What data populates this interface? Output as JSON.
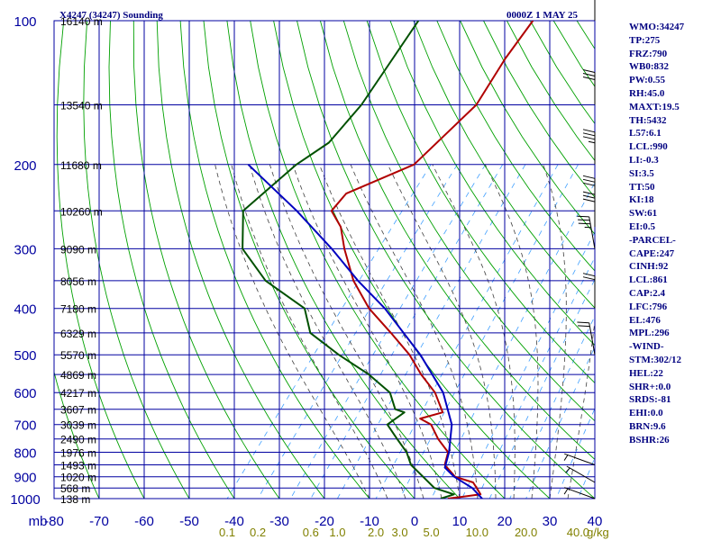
{
  "header": {
    "station": "X4247 (34247) Sounding",
    "time": "0000Z  1 MAY 25"
  },
  "indices": [
    "WMO:34247",
    "TP:275",
    "FRZ:790",
    "WB0:832",
    "PW:0.55",
    "RH:45.0",
    "MAXT:19.5",
    "TH:5432",
    "L57:6.1",
    "LCL:990",
    "LI:-0.3",
    "SI:3.5",
    "TT:50",
    "KI:18",
    "SW:61",
    "EI:0.5",
    "-PARCEL-",
    "CAPE:247",
    "CINH:92",
    "LCL:861",
    "CAP:2.4",
    "LFC:796",
    "EL:476",
    "MPL:296",
    "-WIND-",
    "STM:302/12",
    "HEL:22",
    "SHR+:0.0",
    "SRDS:-81",
    "EHI:0.0",
    "BRN:9.6",
    "BSHR:26"
  ],
  "colors": {
    "grid": "#0000a0",
    "dry_adiabat": "#00a000",
    "moist_adiabat": "#404040",
    "mixing_ratio": "#40a0ff",
    "temperature": "#b00000",
    "dewpoint": "#005000",
    "parcel": "#0000c0",
    "mixing_ratio_label": "#808000"
  },
  "chart_data": {
    "type": "line",
    "title": "X4247 (34247) Sounding",
    "subtitle": "0000Z  1 MAY 25",
    "pressure_axis_unit": "mb",
    "mixing_ratio_unit": "g/kg",
    "pressure_range": [
      100,
      1000
    ],
    "temperature_range": [
      -80,
      40
    ],
    "pressure_ticks": [
      {
        "value": 100,
        "label": "100"
      },
      {
        "value": 200,
        "label": "200"
      },
      {
        "value": 300,
        "label": "300"
      },
      {
        "value": 400,
        "label": "400"
      },
      {
        "value": 500,
        "label": "500"
      },
      {
        "value": 600,
        "label": "600"
      },
      {
        "value": 700,
        "label": "700"
      },
      {
        "value": 800,
        "label": "800"
      },
      {
        "value": 900,
        "label": "900"
      },
      {
        "value": 1000,
        "label": "1000"
      }
    ],
    "temperature_ticks": [
      {
        "value": -80,
        "label": "-80"
      },
      {
        "value": -70,
        "label": "-70"
      },
      {
        "value": -60,
        "label": "-60"
      },
      {
        "value": -50,
        "label": "-50"
      },
      {
        "value": -40,
        "label": "-40"
      },
      {
        "value": -30,
        "label": "-30"
      },
      {
        "value": -20,
        "label": "-20"
      },
      {
        "value": -10,
        "label": "-10"
      },
      {
        "value": 0,
        "label": "0"
      },
      {
        "value": 10,
        "label": "10"
      },
      {
        "value": 20,
        "label": "20"
      },
      {
        "value": 30,
        "label": "30"
      },
      {
        "value": 40,
        "label": "40"
      }
    ],
    "mixing_ratio_labels": [
      {
        "ratio": 0.1,
        "label": "0.1"
      },
      {
        "ratio": 0.2,
        "label": "0.2"
      },
      {
        "ratio": 0.6,
        "label": "0.6"
      },
      {
        "ratio": 1.0,
        "label": "1.0"
      },
      {
        "ratio": 2.0,
        "label": "2.0"
      },
      {
        "ratio": 3.0,
        "label": "3.0"
      },
      {
        "ratio": 5.0,
        "label": "5.0"
      },
      {
        "ratio": 10.0,
        "label": "10.0"
      },
      {
        "ratio": 20.0,
        "label": "20.0"
      },
      {
        "ratio": 40.0,
        "label": "40.0"
      }
    ],
    "mixing_ratio_lines": [
      0.1,
      0.2,
      0.4,
      0.6,
      1,
      2,
      3,
      5,
      8,
      10,
      12,
      16,
      20,
      30,
      40
    ],
    "height_levels": [
      {
        "pressure": 100,
        "label": "16140 m"
      },
      {
        "pressure": 150,
        "label": "13540 m"
      },
      {
        "pressure": 200,
        "label": "11680 m"
      },
      {
        "pressure": 250,
        "label": "10260 m"
      },
      {
        "pressure": 300,
        "label": "9090 m"
      },
      {
        "pressure": 350,
        "label": "8056 m"
      },
      {
        "pressure": 400,
        "label": "7180 m"
      },
      {
        "pressure": 450,
        "label": "6329 m"
      },
      {
        "pressure": 500,
        "label": "5570 m"
      },
      {
        "pressure": 550,
        "label": "4869 m"
      },
      {
        "pressure": 600,
        "label": "4217 m"
      },
      {
        "pressure": 650,
        "label": "3607 m"
      },
      {
        "pressure": 700,
        "label": "3039 m"
      },
      {
        "pressure": 750,
        "label": "2490 m"
      },
      {
        "pressure": 800,
        "label": "1976 m"
      },
      {
        "pressure": 850,
        "label": "1493 m"
      },
      {
        "pressure": 900,
        "label": "1020 m"
      },
      {
        "pressure": 950,
        "label": "568 m"
      },
      {
        "pressure": 1000,
        "label": "138 m"
      }
    ],
    "series": [
      {
        "key": "temperature",
        "points": [
          [
            1000,
            7.4
          ],
          [
            980,
            13.9
          ],
          [
            950,
            11.9
          ],
          [
            925,
            10.1
          ],
          [
            900,
            5.1
          ],
          [
            850,
            0.7
          ],
          [
            800,
            -0.8
          ],
          [
            750,
            -5.4
          ],
          [
            700,
            -9.5
          ],
          [
            680,
            -13.0
          ],
          [
            660,
            -9.1
          ],
          [
            600,
            -14.3
          ],
          [
            550,
            -20.6
          ],
          [
            500,
            -26.7
          ],
          [
            450,
            -34.7
          ],
          [
            400,
            -43.9
          ],
          [
            350,
            -52.3
          ],
          [
            300,
            -60.0
          ],
          [
            270,
            -64.7
          ],
          [
            250,
            -69.6
          ],
          [
            230,
            -69.4
          ],
          [
            200,
            -59.5
          ],
          [
            150,
            -56.3
          ],
          [
            120,
            -58.1
          ],
          [
            100,
            -58.7
          ]
        ]
      },
      {
        "key": "dewpoint",
        "points": [
          [
            1000,
            5.8
          ],
          [
            980,
            8.0
          ],
          [
            950,
            2.5
          ],
          [
            900,
            -2.0
          ],
          [
            850,
            -6.8
          ],
          [
            800,
            -10.0
          ],
          [
            750,
            -14.5
          ],
          [
            700,
            -19.2
          ],
          [
            660,
            -17.6
          ],
          [
            650,
            -20.2
          ],
          [
            600,
            -24.3
          ],
          [
            550,
            -32.2
          ],
          [
            500,
            -42.4
          ],
          [
            450,
            -52.6
          ],
          [
            400,
            -58.2
          ],
          [
            350,
            -71.8
          ],
          [
            300,
            -82.6
          ],
          [
            250,
            -89.2
          ],
          [
            200,
            -85.6
          ],
          [
            180,
            -82.3
          ],
          [
            150,
            -81.8
          ],
          [
            100,
            -84.1
          ]
        ]
      },
      {
        "key": "parcel",
        "points": [
          [
            1000,
            15.0
          ],
          [
            950,
            10.9
          ],
          [
            900,
            4.9
          ],
          [
            861,
            1.2
          ],
          [
            800,
            -0.6
          ],
          [
            700,
            -4.9
          ],
          [
            600,
            -12.5
          ],
          [
            500,
            -24.3
          ],
          [
            400,
            -40.4
          ],
          [
            350,
            -51.3
          ],
          [
            300,
            -62.8
          ],
          [
            250,
            -77.3
          ],
          [
            200,
            -96.3
          ]
        ]
      }
    ],
    "wind_barbs": [
      {
        "pressure": 100,
        "direction": 360,
        "speed": 15
      },
      {
        "pressure": 150,
        "direction": 360,
        "speed": 30
      },
      {
        "pressure": 200,
        "direction": 360,
        "speed": 35
      },
      {
        "pressure": 250,
        "direction": 360,
        "speed": 30
      },
      {
        "pressure": 270,
        "direction": 360,
        "speed": 30
      },
      {
        "pressure": 300,
        "direction": 350,
        "speed": 35
      },
      {
        "pressure": 400,
        "direction": 360,
        "speed": 20
      },
      {
        "pressure": 500,
        "direction": 350,
        "speed": 20
      },
      {
        "pressure": 850,
        "direction": 290,
        "speed": 5
      },
      {
        "pressure": 925,
        "direction": 300,
        "speed": 5
      },
      {
        "pressure": 1000,
        "direction": 290,
        "speed": 5
      }
    ]
  }
}
